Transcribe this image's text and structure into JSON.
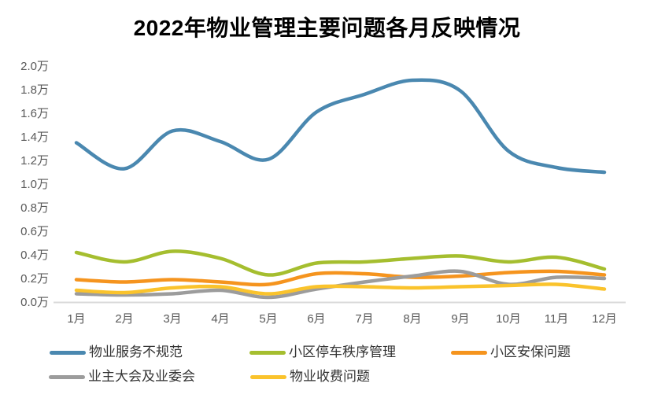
{
  "title": "2022年物业管理主要问题各月反映情况",
  "chart_data": {
    "type": "line",
    "title": "2022年物业管理主要问题各月反映情况",
    "line_style": "smooth",
    "grid": false,
    "legend_position": "bottom",
    "x_categories": [
      "1月",
      "2月",
      "3月",
      "4月",
      "5月",
      "6月",
      "7月",
      "8月",
      "9月",
      "10月",
      "11月",
      "12月"
    ],
    "y_tick_labels": [
      "0.0万",
      "0.2万",
      "0.4万",
      "0.6万",
      "0.8万",
      "1.0万",
      "1.2万",
      "1.4万",
      "1.6万",
      "1.8万",
      "2.0万"
    ],
    "y_unit": "万",
    "ylim": [
      0.0,
      2.0
    ],
    "y_step": 0.2,
    "series": [
      {
        "name": "物业服务不规范",
        "color": "#4A88B0",
        "values": [
          1.35,
          1.13,
          1.45,
          1.36,
          1.21,
          1.61,
          1.76,
          1.88,
          1.79,
          1.28,
          1.14,
          1.1
        ]
      },
      {
        "name": "小区停车秩序管理",
        "color": "#A5BE2F",
        "values": [
          0.42,
          0.34,
          0.43,
          0.37,
          0.23,
          0.33,
          0.34,
          0.37,
          0.39,
          0.34,
          0.38,
          0.28
        ]
      },
      {
        "name": "小区安保问题",
        "color": "#F5941E",
        "values": [
          0.19,
          0.17,
          0.19,
          0.17,
          0.15,
          0.24,
          0.24,
          0.21,
          0.22,
          0.25,
          0.26,
          0.23
        ]
      },
      {
        "name": "业主大会及业委会",
        "color": "#9C9C9C",
        "values": [
          0.07,
          0.06,
          0.07,
          0.1,
          0.04,
          0.11,
          0.17,
          0.22,
          0.26,
          0.15,
          0.21,
          0.2
        ]
      },
      {
        "name": "物业收费问题",
        "color": "#FAC32C",
        "values": [
          0.1,
          0.08,
          0.12,
          0.13,
          0.07,
          0.13,
          0.13,
          0.12,
          0.13,
          0.14,
          0.15,
          0.11
        ]
      }
    ]
  },
  "colors": {
    "background": "#FFFFFF",
    "title_text": "#000000",
    "axis_text": "#595959",
    "axis_line": "#D9D9D9",
    "legend_text": "#333333"
  }
}
